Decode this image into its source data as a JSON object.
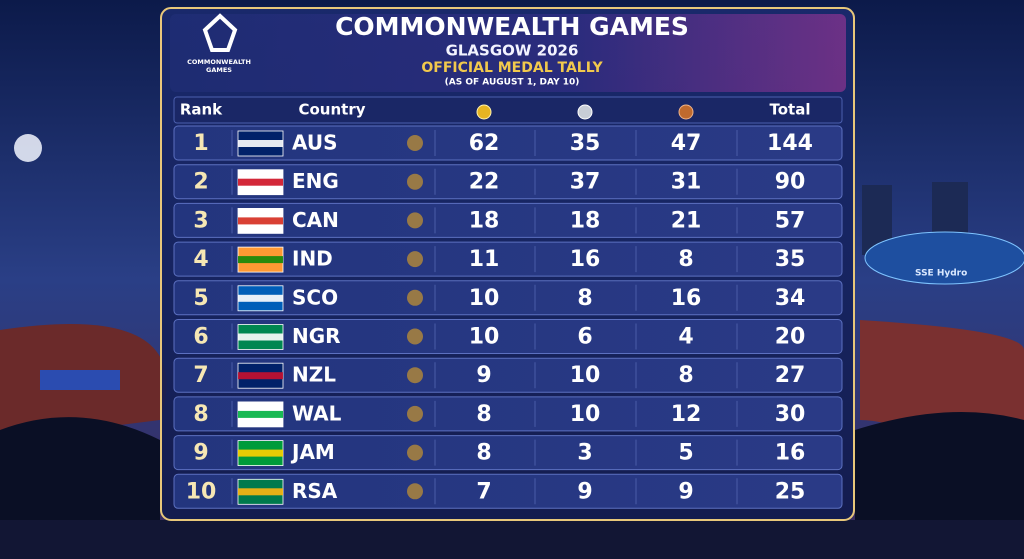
{
  "logo": {
    "lines": [
      "COMMONWEALTH",
      "GAMES"
    ]
  },
  "header": {
    "title": "COMMONWEALTH GAMES",
    "subtitle": "GLASGOW 2026",
    "heading": "OFFICIAL MEDAL TALLY",
    "note": "(AS OF AUGUST 1, DAY 10)"
  },
  "table": {
    "headers": {
      "rank": "Rank",
      "country": "Country",
      "total": "Total"
    },
    "rows": [
      [
        1,
        "AUS",
        62,
        35,
        47,
        144
      ],
      [
        2,
        "ENG",
        22,
        37,
        31,
        90
      ],
      [
        3,
        "CAN",
        18,
        18,
        21,
        57
      ],
      [
        4,
        "IND",
        11,
        16,
        8,
        35
      ],
      [
        5,
        "SCO",
        10,
        8,
        16,
        34
      ],
      [
        6,
        "NGR",
        10,
        6,
        4,
        20
      ],
      [
        7,
        "NZL",
        9,
        10,
        8,
        27
      ],
      [
        8,
        "WAL",
        8,
        10,
        12,
        30
      ],
      [
        9,
        "JAM",
        8,
        3,
        5,
        16
      ],
      [
        10,
        "RSA",
        7,
        9,
        9,
        25
      ]
    ]
  },
  "background": {
    "arena_sign": "SSE Hydro"
  }
}
